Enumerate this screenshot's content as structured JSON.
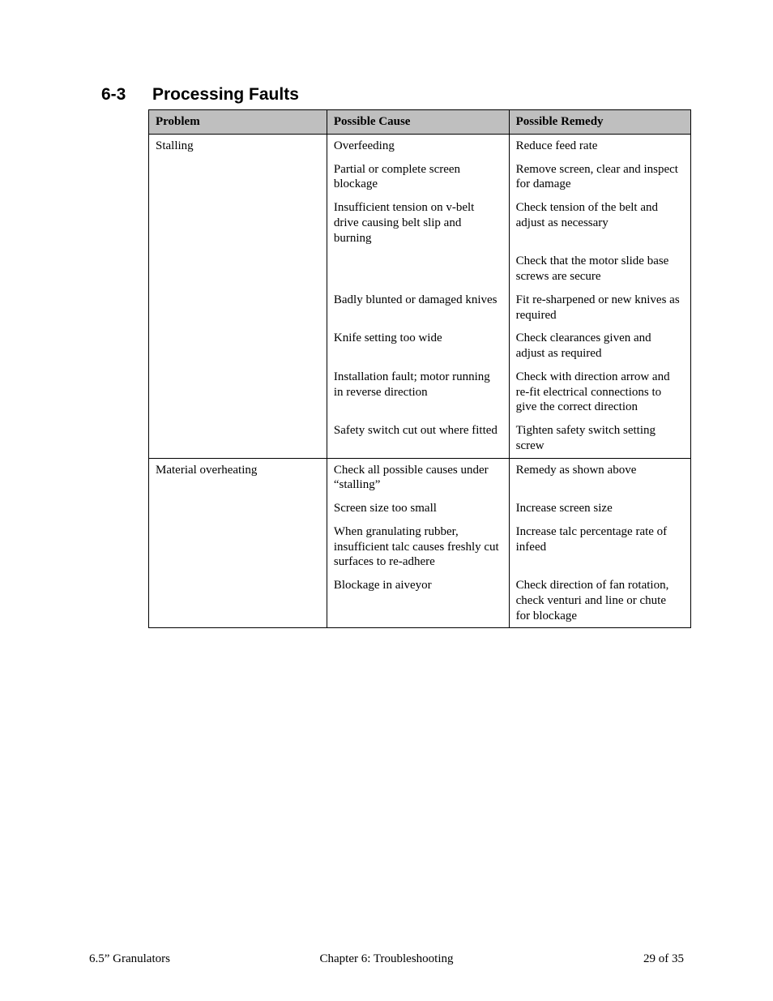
{
  "heading": {
    "number": "6-3",
    "title": "Processing Faults"
  },
  "columns": {
    "problem": "Problem",
    "cause": "Possible Cause",
    "remedy": "Possible Remedy"
  },
  "rows": [
    {
      "group_start": true,
      "problem": "Stalling",
      "cause": "Overfeeding",
      "remedy": "Reduce feed rate"
    },
    {
      "group_start": false,
      "problem": "",
      "cause": "Partial or complete screen blockage",
      "remedy": "Remove screen, clear and inspect for damage"
    },
    {
      "group_start": false,
      "problem": "",
      "cause": "Insufficient tension on v-belt drive causing belt slip and burning",
      "remedy": "Check tension of the belt and adjust as necessary"
    },
    {
      "group_start": false,
      "problem": "",
      "cause": "",
      "remedy": "Check that the motor slide base screws are secure"
    },
    {
      "group_start": false,
      "problem": "",
      "cause": "Badly blunted or damaged knives",
      "remedy": "Fit re-sharpened or new knives as required"
    },
    {
      "group_start": false,
      "problem": "",
      "cause": "Knife setting too wide",
      "remedy": "Check clearances given and adjust as required"
    },
    {
      "group_start": false,
      "problem": "",
      "cause": "Installation fault; motor running in reverse direction",
      "remedy": "Check with direction arrow and re-fit electrical connections to give the correct direction"
    },
    {
      "group_start": false,
      "problem": "",
      "cause": "Safety switch cut out where fitted",
      "remedy": "Tighten safety switch setting screw"
    },
    {
      "group_start": true,
      "problem": "Material overheating",
      "cause": "Check all possible causes under “stalling”",
      "remedy": "Remedy as shown above"
    },
    {
      "group_start": false,
      "problem": "",
      "cause": "Screen size too small",
      "remedy": "Increase screen size"
    },
    {
      "group_start": false,
      "problem": "",
      "cause": "When granulating rubber, insufficient talc causes freshly cut surfaces to re-adhere",
      "remedy": "Increase talc percentage rate of infeed"
    },
    {
      "group_start": false,
      "problem": "",
      "cause": "Blockage in aiveyor",
      "remedy": "Check direction of fan rotation, check venturi and line or chute for blockage"
    }
  ],
  "footer": {
    "left": "6.5” Granulators",
    "center": "Chapter 6: Troubleshooting",
    "right": "29 of 35"
  }
}
